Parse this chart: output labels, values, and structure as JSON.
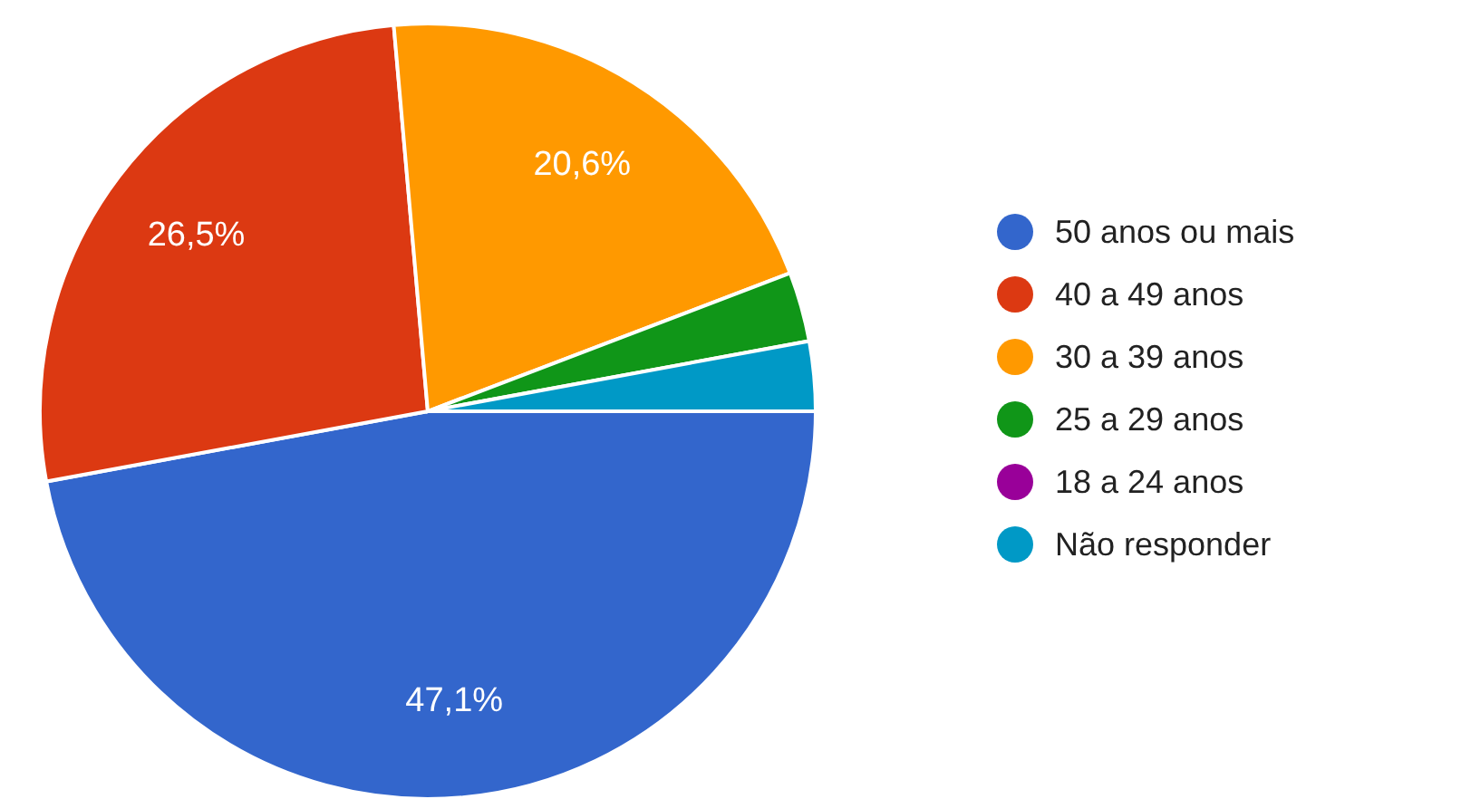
{
  "chart_data": {
    "type": "pie",
    "categories": [
      "50 anos ou mais",
      "40 a 49 anos",
      "30 a 39 anos",
      "25 a 29 anos",
      "18 a 24 anos",
      "Não responder"
    ],
    "values": [
      47.1,
      26.5,
      20.6,
      2.9,
      0,
      2.9
    ],
    "colors": [
      "#3366cc",
      "#dc3912",
      "#ff9900",
      "#109618",
      "#990099",
      "#0099c6"
    ],
    "value_labels": [
      "47,1%",
      "26,5%",
      "20,6%",
      null,
      null,
      null
    ],
    "legend": "right"
  }
}
